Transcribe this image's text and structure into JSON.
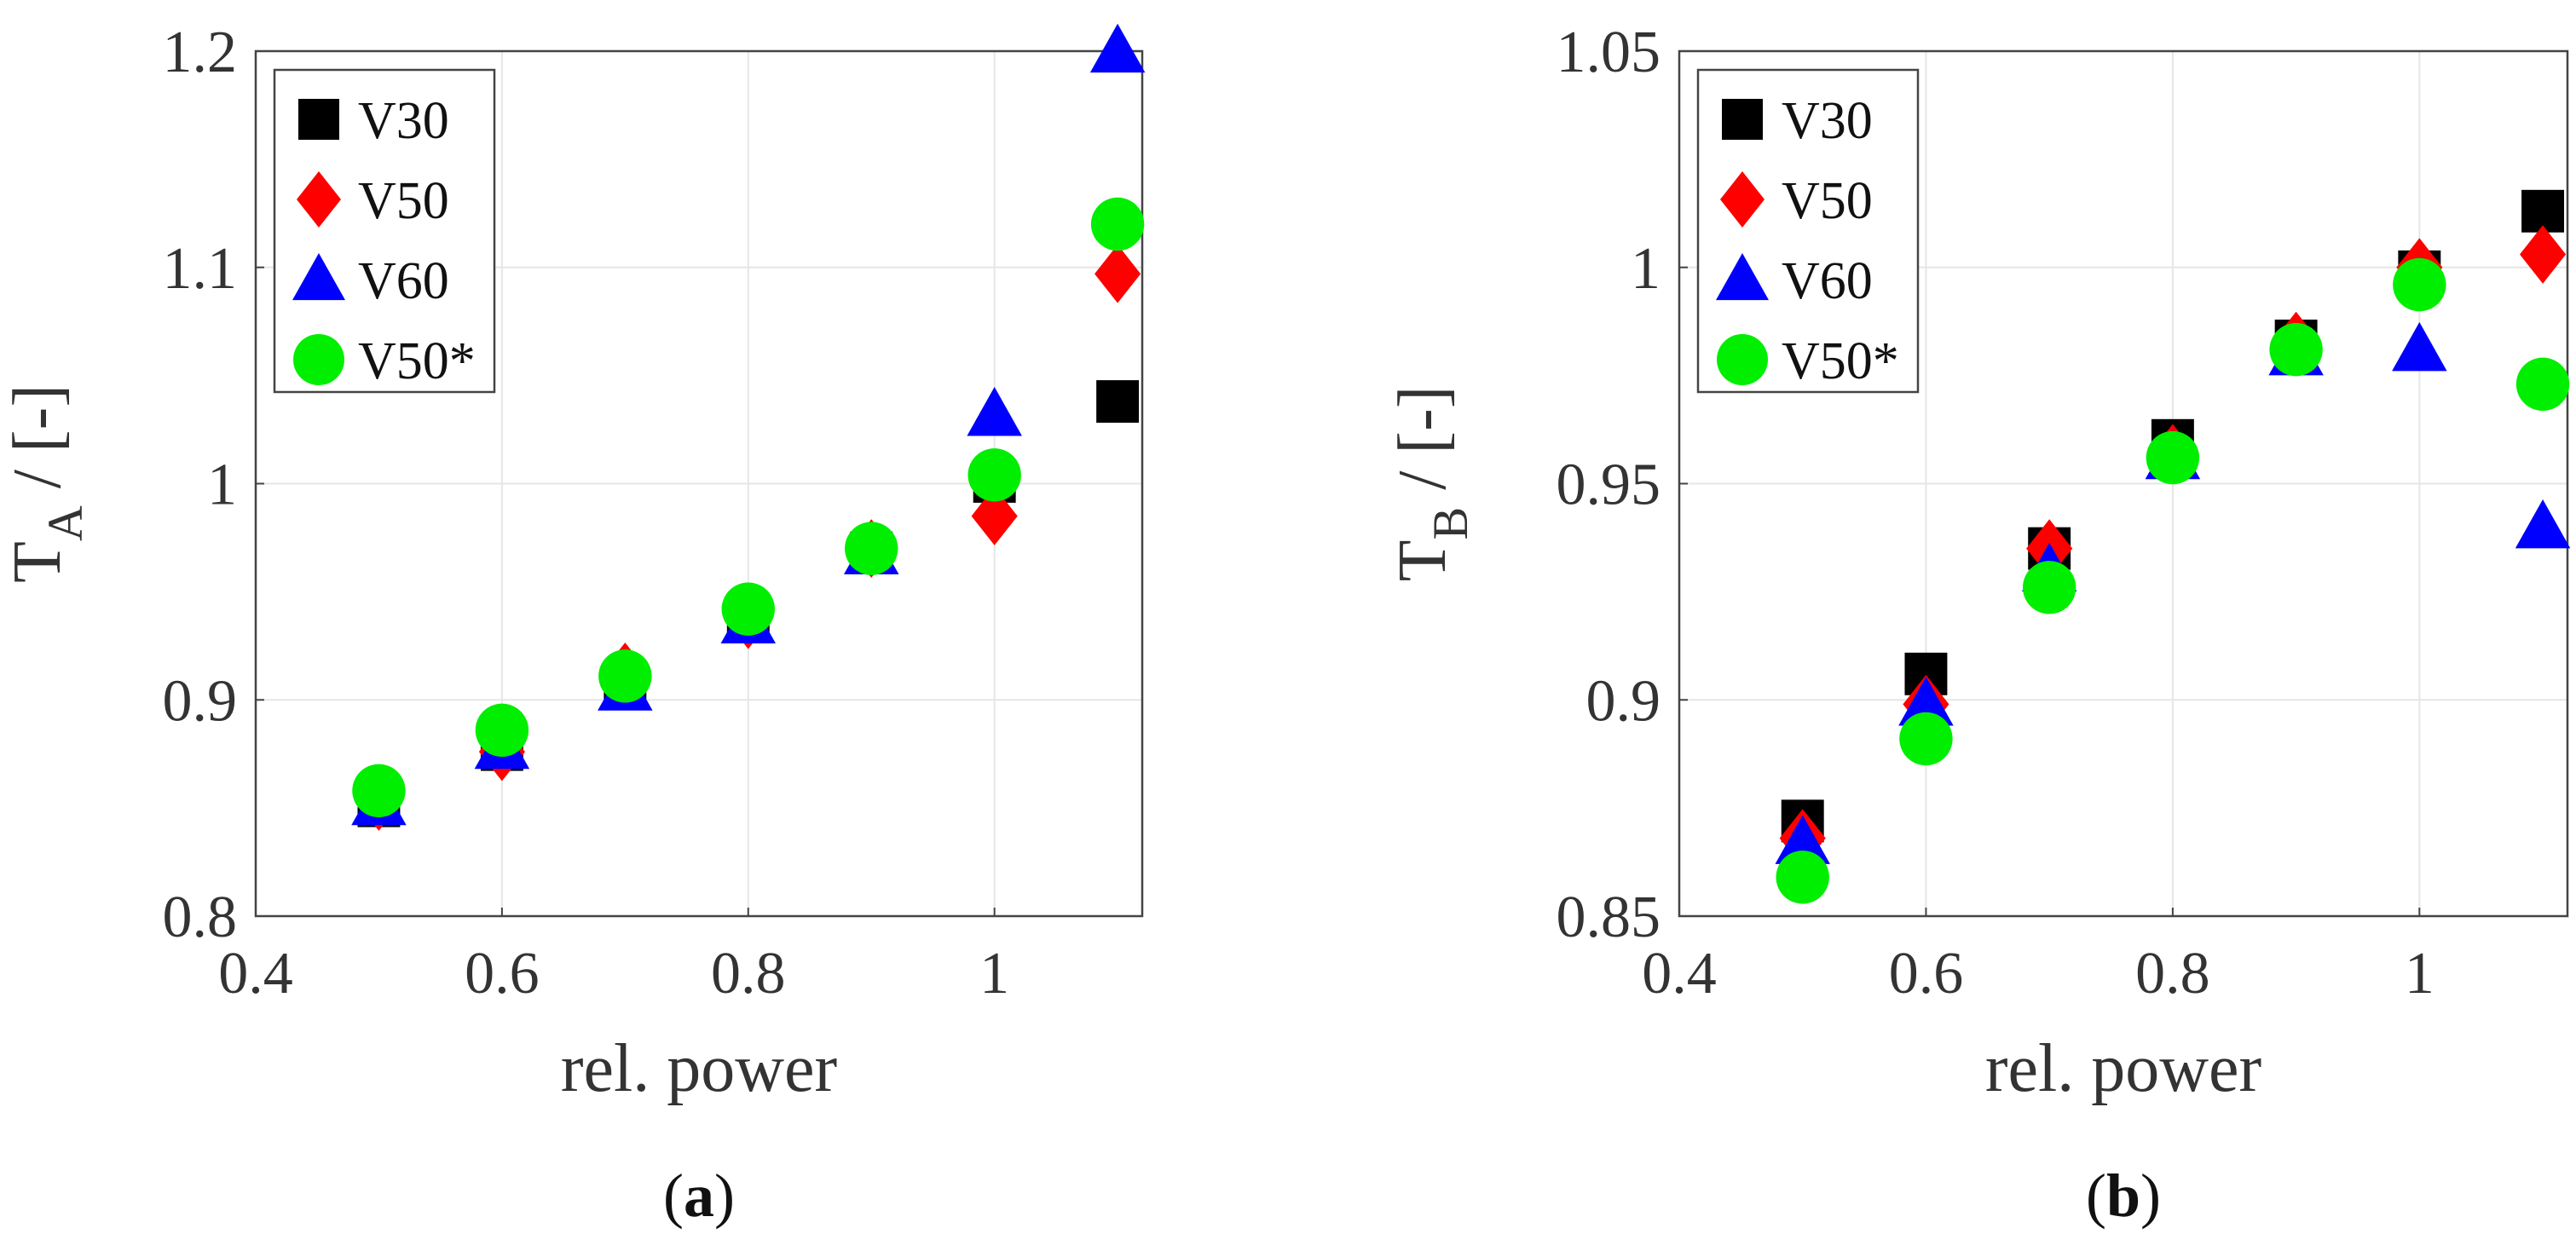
{
  "chart_data": [
    {
      "panel": "(a)",
      "panel_letter": "a",
      "type": "scatter",
      "xlabel": "rel. power",
      "ylabel": {
        "main": "T",
        "sub": "A",
        "rest": " / [-]"
      },
      "xlim": [
        0.4,
        1.12
      ],
      "ylim": [
        0.8,
        1.2
      ],
      "xticks": [
        0.4,
        0.6,
        0.8,
        1.0
      ],
      "xtick_labels": [
        "0.4",
        "0.6",
        "0.8",
        "1"
      ],
      "yticks": [
        0.8,
        0.9,
        1.0,
        1.1,
        1.2
      ],
      "ytick_labels": [
        "0.8",
        "0.9",
        "1",
        "1.1",
        "1.2"
      ],
      "grid": true,
      "legend_position": "top-left",
      "x": [
        0.5,
        0.6,
        0.7,
        0.8,
        0.9,
        1.0,
        1.1
      ],
      "series": [
        {
          "name": "V30",
          "marker": "square",
          "color": "#000000",
          "values": [
            0.851,
            0.877,
            0.907,
            0.937,
            0.968,
            1.001,
            1.038
          ]
        },
        {
          "name": "V50",
          "marker": "diamond",
          "color": "#ff0000",
          "values": [
            0.853,
            0.876,
            0.913,
            0.937,
            0.97,
            0.985,
            1.097
          ]
        },
        {
          "name": "V60",
          "marker": "triangle",
          "color": "#0000ff",
          "values": [
            0.852,
            0.878,
            0.905,
            0.936,
            0.968,
            1.032,
            1.2
          ]
        },
        {
          "name": "V50*",
          "marker": "circle",
          "color": "#00ee00",
          "values": [
            0.858,
            0.886,
            0.911,
            0.942,
            0.97,
            1.004,
            1.12
          ]
        }
      ]
    },
    {
      "panel": "(b)",
      "panel_letter": "b",
      "type": "scatter",
      "xlabel": "rel. power",
      "ylabel": {
        "main": "T",
        "sub": "B",
        "rest": " / [-]"
      },
      "xlim": [
        0.4,
        1.12
      ],
      "ylim": [
        0.85,
        1.05
      ],
      "xticks": [
        0.4,
        0.6,
        0.8,
        1.0
      ],
      "xtick_labels": [
        "0.4",
        "0.6",
        "0.8",
        "1"
      ],
      "yticks": [
        0.85,
        0.9,
        0.95,
        1.0,
        1.05
      ],
      "ytick_labels": [
        "0.85",
        "0.9",
        "0.95",
        "1",
        "1.05"
      ],
      "grid": true,
      "legend_position": "top-left",
      "x": [
        0.5,
        0.6,
        0.7,
        0.8,
        0.9,
        1.0,
        1.1
      ],
      "series": [
        {
          "name": "V30",
          "marker": "square",
          "color": "#000000",
          "values": [
            0.872,
            0.906,
            0.935,
            0.96,
            0.983,
            0.999,
            1.013
          ]
        },
        {
          "name": "V50",
          "marker": "diamond",
          "color": "#ff0000",
          "values": [
            0.868,
            0.899,
            0.935,
            0.957,
            0.983,
            1.0,
            1.003
          ]
        },
        {
          "name": "V60",
          "marker": "triangle",
          "color": "#0000ff",
          "values": [
            0.867,
            0.899,
            0.93,
            0.956,
            0.98,
            0.981,
            0.94
          ]
        },
        {
          "name": "V50*",
          "marker": "circle",
          "color": "#00ee00",
          "values": [
            0.859,
            0.891,
            0.926,
            0.956,
            0.981,
            0.996,
            0.973
          ]
        }
      ]
    }
  ]
}
